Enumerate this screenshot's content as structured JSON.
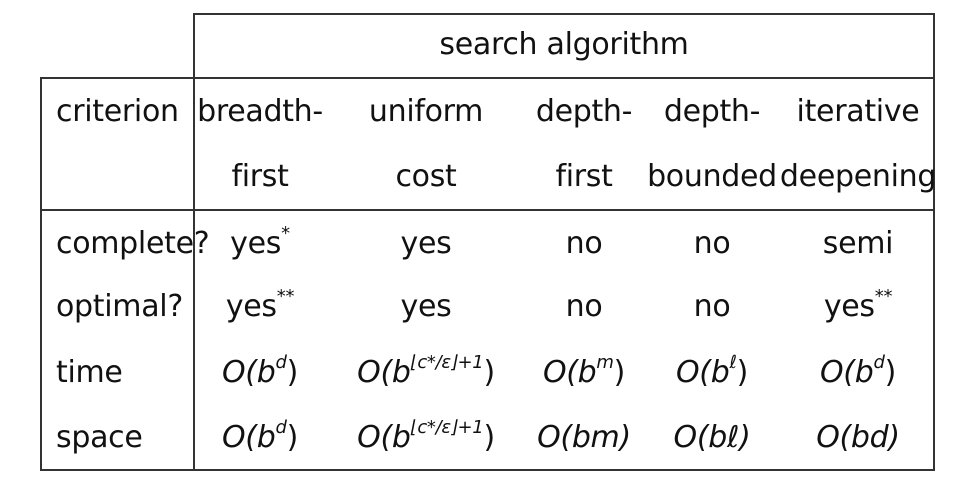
{
  "header": {
    "group_label": "search algorithm",
    "criterion_label": "criterion",
    "columns": [
      {
        "line1": "breadth-",
        "line2": "first"
      },
      {
        "line1": "uniform",
        "line2": "cost"
      },
      {
        "line1": "depth-",
        "line2": "first"
      },
      {
        "line1": "depth-",
        "line2": "bounded"
      },
      {
        "line1": "iterative",
        "line2": "deepening"
      }
    ]
  },
  "rows": [
    {
      "label": "complete?",
      "cells": [
        {
          "text": "yes",
          "sup": "*"
        },
        {
          "text": "yes",
          "sup": ""
        },
        {
          "text": "no",
          "sup": ""
        },
        {
          "text": "no",
          "sup": ""
        },
        {
          "text": "semi",
          "sup": ""
        }
      ]
    },
    {
      "label": "optimal?",
      "cells": [
        {
          "text": "yes",
          "sup": "**"
        },
        {
          "text": "yes",
          "sup": ""
        },
        {
          "text": "no",
          "sup": ""
        },
        {
          "text": "no",
          "sup": ""
        },
        {
          "text": "yes",
          "sup": "**"
        }
      ]
    },
    {
      "label": "time",
      "cells": [
        {
          "base": "O(b",
          "sup": "d",
          "close": ")"
        },
        {
          "base": "O(b",
          "sup": "⌊c*/ε⌋+1",
          "close": ")"
        },
        {
          "base": "O(b",
          "sup": "m",
          "close": ")"
        },
        {
          "base": "O(b",
          "sup": "ℓ",
          "close": ")"
        },
        {
          "base": "O(b",
          "sup": "d",
          "close": ")"
        }
      ]
    },
    {
      "label": "space",
      "cells": [
        {
          "base": "O(b",
          "sup": "d",
          "close": ")"
        },
        {
          "base": "O(b",
          "sup": "⌊c*/ε⌋+1",
          "close": ")"
        },
        {
          "base": "O(bm)",
          "sup": "",
          "close": ""
        },
        {
          "base": "O(bℓ)",
          "sup": "",
          "close": ""
        },
        {
          "base": "O(bd)",
          "sup": "",
          "close": ""
        }
      ]
    }
  ]
}
